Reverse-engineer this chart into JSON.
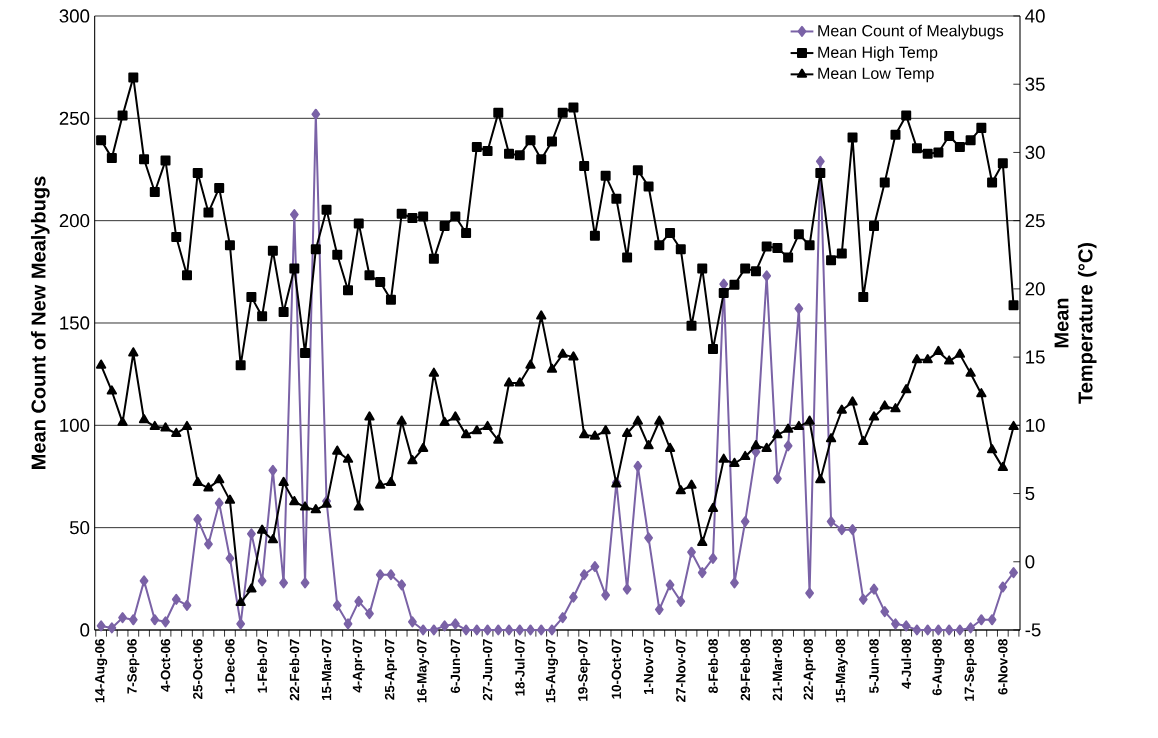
{
  "chart_data": {
    "type": "line",
    "ylabel": "Mean Count of New Mealybugs",
    "y2label": "Mean Temperature (°C)",
    "categories": [
      "14-Aug-06",
      null,
      null,
      "7-Sep-06",
      null,
      null,
      "4-Oct-06",
      null,
      null,
      "25-Oct-06",
      null,
      null,
      "1-Dec-06",
      null,
      null,
      "1-Feb-07",
      null,
      null,
      "22-Feb-07",
      null,
      null,
      "15-Mar-07",
      null,
      null,
      "4-Apr-07",
      null,
      null,
      "25-Apr-07",
      null,
      null,
      "16-May-07",
      null,
      null,
      "6-Jun-07",
      null,
      null,
      "27-Jun-07",
      null,
      null,
      "18-Jul-07",
      null,
      null,
      "15-Aug-07",
      null,
      null,
      "19-Sep-07",
      null,
      null,
      "10-Oct-07",
      null,
      null,
      "1-Nov-07",
      null,
      null,
      "27-Nov-07",
      null,
      null,
      "8-Feb-08",
      null,
      null,
      "29-Feb-08",
      null,
      null,
      "21-Mar-08",
      null,
      null,
      "22-Apr-08",
      null,
      null,
      "15-May-08",
      null,
      null,
      "5-Jun-08",
      null,
      null,
      "4-Jul-08",
      null,
      null,
      "6-Aug-08",
      null,
      null,
      "17-Sep-08",
      null,
      null,
      "6-Nov-08",
      null
    ],
    "series": [
      {
        "name": "Mean Count of Mealybugs",
        "color": "#7a62a6",
        "marker": "diamond",
        "values": [
          2,
          1,
          6,
          5,
          24,
          5,
          4,
          15,
          12,
          54,
          42,
          62,
          35,
          3,
          47,
          24,
          78,
          23,
          203,
          23,
          252,
          63,
          12,
          3,
          14,
          8,
          27,
          27,
          22,
          4,
          0,
          0,
          2,
          3,
          0,
          0,
          0,
          0,
          0,
          0,
          0,
          0,
          0,
          6,
          16,
          27,
          31,
          17,
          72,
          20,
          80,
          45,
          10,
          22,
          14,
          38,
          28,
          35,
          169,
          23,
          53,
          87,
          173,
          74,
          90,
          157,
          18,
          229,
          53,
          49,
          49,
          15,
          20,
          9,
          3,
          2,
          0,
          0,
          0,
          0,
          0,
          1,
          5,
          5,
          21,
          28
        ]
      },
      {
        "name": "Mean High Temp",
        "color": "#000000",
        "marker": "square",
        "axis": "y2",
        "values": [
          30.9,
          29.6,
          32.7,
          35.5,
          29.5,
          27.1,
          29.4,
          23.8,
          21.0,
          28.5,
          25.6,
          27.4,
          23.2,
          14.4,
          19.4,
          18.0,
          22.8,
          18.3,
          21.5,
          15.3,
          22.9,
          25.8,
          22.5,
          19.9,
          24.8,
          21.0,
          20.5,
          19.2,
          25.5,
          25.2,
          25.3,
          22.2,
          24.6,
          25.3,
          24.1,
          30.4,
          30.1,
          32.9,
          29.9,
          29.8,
          30.9,
          29.5,
          30.8,
          32.9,
          33.3,
          29.0,
          23.9,
          28.3,
          26.6,
          22.3,
          28.7,
          27.5,
          23.2,
          24.1,
          22.9,
          17.3,
          21.5,
          15.6,
          19.7,
          20.3,
          21.5,
          21.3,
          23.1,
          23.0,
          22.3,
          24.0,
          23.2,
          28.5,
          22.1,
          22.6,
          31.1,
          19.4,
          24.6,
          27.8,
          31.3,
          32.7,
          30.3,
          29.9,
          30.0,
          31.2,
          30.4,
          30.9,
          31.8,
          27.8,
          29.2,
          18.8
        ]
      },
      {
        "name": "Mean Low Temp",
        "color": "#000000",
        "marker": "triangle",
        "axis": "y2",
        "values": [
          14.4,
          12.5,
          10.2,
          15.3,
          10.4,
          9.9,
          9.8,
          9.4,
          9.9,
          5.8,
          5.4,
          6.0,
          4.5,
          -3.0,
          -2.0,
          2.3,
          1.6,
          5.8,
          4.4,
          4.0,
          3.8,
          4.2,
          8.1,
          7.5,
          4.0,
          10.6,
          5.6,
          5.8,
          10.3,
          7.4,
          8.3,
          13.8,
          10.2,
          10.6,
          9.3,
          9.6,
          9.9,
          8.9,
          13.1,
          13.1,
          14.4,
          18.0,
          14.1,
          15.2,
          15.0,
          9.3,
          9.2,
          9.6,
          5.7,
          9.4,
          10.3,
          8.5,
          10.3,
          8.3,
          5.2,
          5.6,
          1.4,
          3.9,
          7.5,
          7.2,
          7.7,
          8.5,
          8.3,
          9.3,
          9.7,
          9.9,
          10.3,
          6.0,
          9.0,
          11.1,
          11.7,
          8.8,
          10.6,
          11.4,
          11.2,
          12.6,
          14.8,
          14.8,
          15.4,
          14.7,
          15.2,
          13.8,
          12.3,
          8.2,
          6.9,
          9.9
        ]
      }
    ],
    "ylim": [
      0,
      300
    ],
    "yticks": [
      0,
      50,
      100,
      150,
      200,
      250,
      300
    ],
    "y2lim": [
      -5,
      40
    ],
    "y2ticks": [
      -5,
      0,
      5,
      10,
      15,
      20,
      25,
      30,
      35,
      40
    ],
    "grid": "y",
    "legend": "top right"
  }
}
